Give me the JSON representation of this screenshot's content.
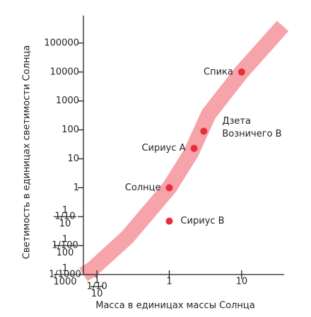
{
  "chart_data": {
    "type": "scatter",
    "x_label": "Масса в единицах массы Солнца",
    "y_label": "Светимость в единицах светимости Солнца",
    "log_x": true,
    "log_y": true,
    "xlim": [
      0.065,
      37
    ],
    "ylim": [
      0.001,
      1000000
    ],
    "xticks": [
      {
        "value": 0.1,
        "label": "1/10"
      },
      1,
      10
    ],
    "yticks": [
      {
        "value": 0.001,
        "label": "1/1000"
      },
      {
        "value": 0.01,
        "label": "1/100"
      },
      {
        "value": 0.1,
        "label": "1/10"
      },
      1,
      10,
      100,
      1000,
      10000,
      100000
    ],
    "curve": {
      "color": "#f6a3aa",
      "x": [
        0.065,
        0.085,
        0.26,
        1,
        2,
        3.5,
        10,
        37
      ],
      "y": [
        0.001,
        0.0015,
        0.019,
        1,
        16,
        350,
        10000,
        390000
      ]
    },
    "color": "#e5303b",
    "points": [
      {
        "label": [
          "Спика"
        ],
        "x": 10,
        "y": 10000
      },
      {
        "label": [
          "Дзета",
          "Возничего В"
        ],
        "x": 3,
        "y": 90
      },
      {
        "label": [
          "Сириус А"
        ],
        "x": 2.2,
        "y": 23
      },
      {
        "label": [
          "Солнце"
        ],
        "x": 1,
        "y": 1
      },
      {
        "label": [
          "Сириус В"
        ],
        "x": 1,
        "y": 0.07
      }
    ]
  }
}
